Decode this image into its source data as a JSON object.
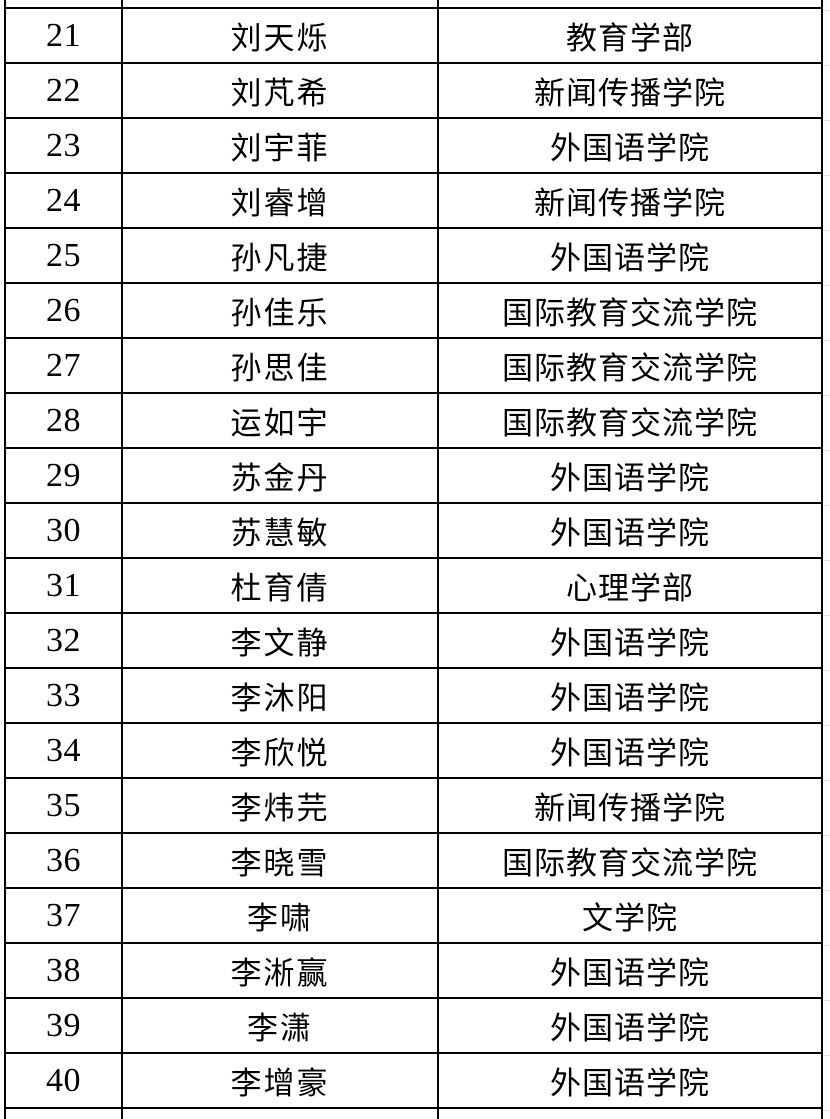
{
  "table": {
    "name": "student-college-roster",
    "columns": [
      {
        "key": "num",
        "semantic": "row-number"
      },
      {
        "key": "name",
        "semantic": "student-name"
      },
      {
        "key": "college",
        "semantic": "college-name"
      }
    ],
    "rows": [
      {
        "num": "21",
        "name": "刘天烁",
        "college": "教育学部"
      },
      {
        "num": "22",
        "name": "刘芃希",
        "college": "新闻传播学院"
      },
      {
        "num": "23",
        "name": "刘宇菲",
        "college": "外国语学院"
      },
      {
        "num": "24",
        "name": "刘睿增",
        "college": "新闻传播学院"
      },
      {
        "num": "25",
        "name": "孙凡捷",
        "college": "外国语学院"
      },
      {
        "num": "26",
        "name": "孙佳乐",
        "college": "国际教育交流学院"
      },
      {
        "num": "27",
        "name": "孙思佳",
        "college": "国际教育交流学院"
      },
      {
        "num": "28",
        "name": "运如宇",
        "college": "国际教育交流学院"
      },
      {
        "num": "29",
        "name": "苏金丹",
        "college": "外国语学院"
      },
      {
        "num": "30",
        "name": "苏慧敏",
        "college": "外国语学院"
      },
      {
        "num": "31",
        "name": "杜育倩",
        "college": "心理学部"
      },
      {
        "num": "32",
        "name": "李文静",
        "college": "外国语学院"
      },
      {
        "num": "33",
        "name": "李沐阳",
        "college": "外国语学院"
      },
      {
        "num": "34",
        "name": "李欣悦",
        "college": "外国语学院"
      },
      {
        "num": "35",
        "name": "李炜芫",
        "college": "新闻传播学院"
      },
      {
        "num": "36",
        "name": "李晓雪",
        "college": "国际教育交流学院"
      },
      {
        "num": "37",
        "name": "李啸",
        "college": "文学院"
      },
      {
        "num": "38",
        "name": "李淅赢",
        "college": "外国语学院"
      },
      {
        "num": "39",
        "name": "李潇",
        "college": "外国语学院"
      },
      {
        "num": "40",
        "name": "李增豪",
        "college": "外国语学院"
      }
    ]
  },
  "colors": {
    "border": "#000000",
    "text": "#000000",
    "background": "#ffffff",
    "gutter_gridline": "#dfdfdf"
  }
}
